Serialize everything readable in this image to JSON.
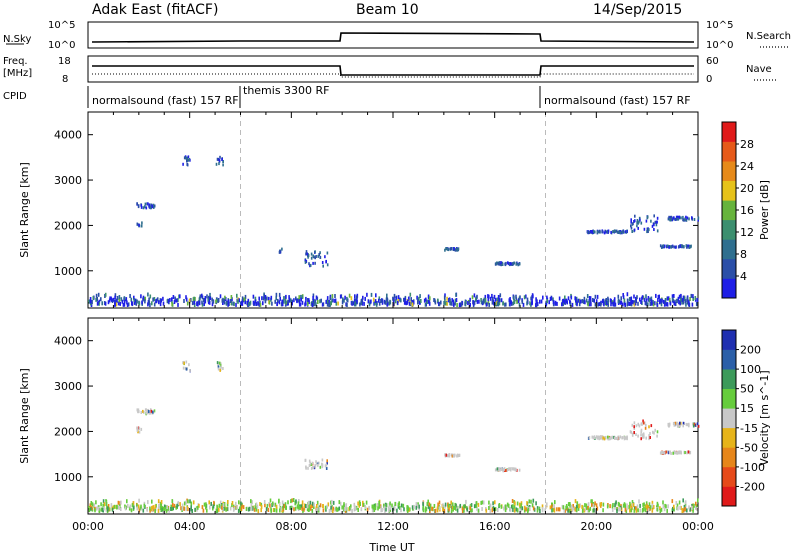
{
  "header": {
    "station": "Adak East (fitACF)",
    "beam": "Beam 10",
    "date": "14/Sep/2015"
  },
  "summary_labels": {
    "nsky": "N.Sky",
    "nsearch": "N.Search",
    "nsky_top": "10^5",
    "nsky_bot": "10^0",
    "nsearch_top": "10^5",
    "nsearch_bot": "10^0",
    "freq_line1": "Freq.",
    "freq_line2": "[MHz]",
    "freq_top": "18",
    "freq_bot": "8",
    "nave": "Nave",
    "nave_top": "60",
    "nave_bot": "0",
    "cpid": "CPID"
  },
  "cpid_segments": [
    {
      "label": "normalsound (fast)  157 RF",
      "start_hour": 0
    },
    {
      "label": "themis 3300 RF",
      "start_hour": 6
    },
    {
      "label": "normalsound (fast)  157 RF",
      "start_hour": 18
    }
  ],
  "colors": {
    "power": [
      "#1f1fe6",
      "#2b4fa8",
      "#2f6f8f",
      "#3c8f6f",
      "#66b33c",
      "#e6c21a",
      "#e68a1a",
      "#e65a1a",
      "#e01a1a"
    ],
    "velocity": [
      "#e01a1a",
      "#e64a1a",
      "#e6861a",
      "#e6b41a",
      "#c8c8c8",
      "#66cc3c",
      "#3c9a5a",
      "#2b5fa8",
      "#1f2fb0"
    ]
  },
  "chart_data": [
    {
      "type": "scatter",
      "panel": "power",
      "xlabel": "Time UT",
      "ylabel": "Slant Range [km]",
      "ylim": [
        180,
        4500
      ],
      "yticks": [
        1000,
        2000,
        3000,
        4000
      ],
      "xlim": [
        0,
        24
      ],
      "xtick_labels": [
        "00:00",
        "04:00",
        "08:00",
        "12:00",
        "16:00",
        "20:00",
        "00:00"
      ],
      "cbar_label": "Power [dB]",
      "cbar_ticks": [
        "4",
        "8",
        "12",
        "16",
        "20",
        "24",
        "28"
      ],
      "clusters": [
        {
          "t0": 3.7,
          "t1": 4.0,
          "r0": 3300,
          "r1": 3500
        },
        {
          "t0": 5.0,
          "t1": 5.3,
          "r0": 3300,
          "r1": 3500
        },
        {
          "t0": 1.9,
          "t1": 2.6,
          "r0": 2350,
          "r1": 2450
        },
        {
          "t0": 1.9,
          "t1": 2.1,
          "r0": 1950,
          "r1": 2050
        },
        {
          "t0": 8.5,
          "t1": 9.4,
          "r0": 1050,
          "r1": 1400
        },
        {
          "t0": 7.5,
          "t1": 7.6,
          "r0": 1350,
          "r1": 1450
        },
        {
          "t0": 14.0,
          "t1": 14.6,
          "r0": 1420,
          "r1": 1460
        },
        {
          "t0": 16.0,
          "t1": 17.0,
          "r0": 1100,
          "r1": 1150
        },
        {
          "t0": 19.6,
          "t1": 21.2,
          "r0": 1800,
          "r1": 1850
        },
        {
          "t0": 21.3,
          "t1": 22.4,
          "r0": 1800,
          "r1": 2200
        },
        {
          "t0": 22.5,
          "t1": 23.7,
          "r0": 1480,
          "r1": 1520
        },
        {
          "t0": 22.8,
          "t1": 24.0,
          "r0": 2080,
          "r1": 2150
        }
      ],
      "ground_band": {
        "r0": 200,
        "r1": 450
      }
    },
    {
      "type": "scatter",
      "panel": "velocity",
      "xlabel": "Time UT",
      "ylabel": "Slant Range [km]",
      "ylim": [
        180,
        4500
      ],
      "yticks": [
        1000,
        2000,
        3000,
        4000
      ],
      "xlim": [
        0,
        24
      ],
      "xtick_labels": [
        "00:00",
        "04:00",
        "08:00",
        "12:00",
        "16:00",
        "20:00",
        "00:00"
      ],
      "cbar_label": "Velocity [m s^-1]",
      "cbar_ticks": [
        "-200",
        "-100",
        "-50",
        "-15",
        "15",
        "50",
        "100",
        "200"
      ],
      "clusters": [
        {
          "t0": 3.7,
          "t1": 4.0,
          "r0": 3300,
          "r1": 3500
        },
        {
          "t0": 5.0,
          "t1": 5.3,
          "r0": 3300,
          "r1": 3500
        },
        {
          "t0": 1.9,
          "t1": 2.6,
          "r0": 2350,
          "r1": 2450
        },
        {
          "t0": 1.9,
          "t1": 2.1,
          "r0": 1950,
          "r1": 2050
        },
        {
          "t0": 8.5,
          "t1": 9.4,
          "r0": 1150,
          "r1": 1350
        },
        {
          "t0": 14.0,
          "t1": 14.6,
          "r0": 1420,
          "r1": 1460
        },
        {
          "t0": 16.0,
          "t1": 17.0,
          "r0": 1100,
          "r1": 1150
        },
        {
          "t0": 19.6,
          "t1": 21.2,
          "r0": 1800,
          "r1": 1850
        },
        {
          "t0": 21.3,
          "t1": 22.4,
          "r0": 1800,
          "r1": 2200
        },
        {
          "t0": 22.5,
          "t1": 23.7,
          "r0": 1480,
          "r1": 1520
        },
        {
          "t0": 22.8,
          "t1": 24.0,
          "r0": 2080,
          "r1": 2150
        }
      ],
      "ground_band": {
        "r0": 200,
        "r1": 450
      }
    }
  ]
}
